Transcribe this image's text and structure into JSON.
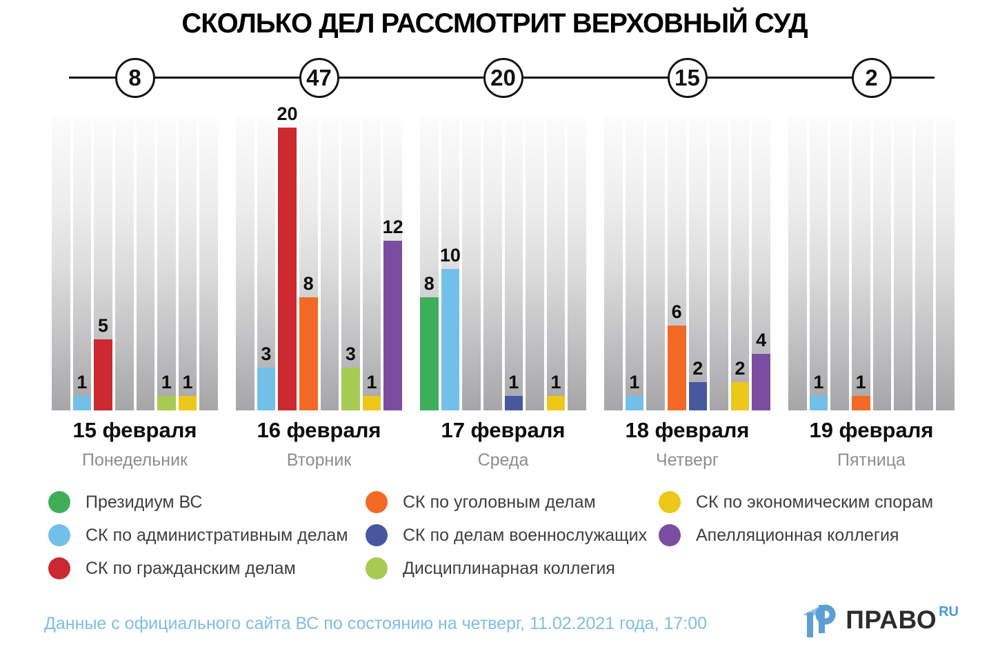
{
  "title": "СКОЛЬКО ДЕЛ РАССМОТРИТ ВЕРХОВНЫЙ СУД",
  "footer": {
    "source": "Данные с официального сайта ВС по состоянию на четверг, 11.02.2021 года, 17:00",
    "logo_text": "ПРАВО",
    "logo_suffix": "RU"
  },
  "chart_data": {
    "type": "bar",
    "title": "СКОЛЬКО ДЕЛ РАССМОТРИТ ВЕРХОВНЫЙ СУД",
    "ylim": [
      0,
      20
    ],
    "grid": false,
    "legend_position": "bottom",
    "categories": [
      "15 февраля",
      "16 февраля",
      "17 февраля",
      "18 февраля",
      "19 февраля"
    ],
    "weekdays": [
      "Понедельник",
      "Вторник",
      "Среда",
      "Четверг",
      "Пятница"
    ],
    "day_totals": [
      8,
      47,
      20,
      15,
      2
    ],
    "series": [
      {
        "name": "Президиум ВС",
        "color": "#3EAE5B",
        "values": [
          0,
          0,
          8,
          0,
          0
        ]
      },
      {
        "name": "СК по административным делам",
        "color": "#72BFE8",
        "values": [
          1,
          3,
          10,
          1,
          1
        ]
      },
      {
        "name": "СК по гражданским делам",
        "color": "#CB2830",
        "values": [
          5,
          20,
          0,
          0,
          0
        ]
      },
      {
        "name": "СК по уголовным делам",
        "color": "#F26A26",
        "values": [
          0,
          8,
          0,
          6,
          1
        ]
      },
      {
        "name": "СК по делам военнослужащих",
        "color": "#47589F",
        "values": [
          0,
          0,
          1,
          2,
          0
        ]
      },
      {
        "name": "Дисциплинарная коллегия",
        "color": "#A7CA53",
        "values": [
          1,
          3,
          0,
          0,
          0
        ]
      },
      {
        "name": "СК по экономическим спорам",
        "color": "#EDC719",
        "values": [
          1,
          1,
          1,
          2,
          0
        ]
      },
      {
        "name": "Апелляционная коллегия",
        "color": "#7A4DA0",
        "values": [
          0,
          12,
          0,
          4,
          0
        ]
      }
    ],
    "legend_columns": [
      [
        0,
        1,
        2
      ],
      [
        3,
        4,
        5
      ],
      [
        6,
        7
      ]
    ]
  }
}
